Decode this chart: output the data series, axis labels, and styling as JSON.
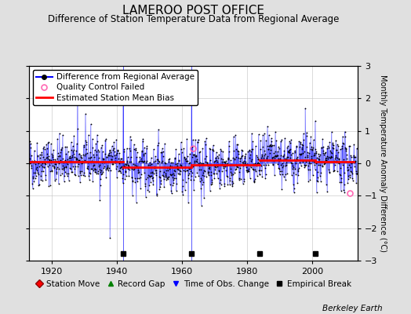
{
  "title": "LAMEROO POST OFFICE",
  "subtitle": "Difference of Station Temperature Data from Regional Average",
  "ylabel": "Monthly Temperature Anomaly Difference (°C)",
  "ylim": [
    -3,
    3
  ],
  "xlim": [
    1913,
    2014
  ],
  "seed": 42,
  "start_year": 1913,
  "end_year": 2013,
  "bias_segments": [
    {
      "start": 1913,
      "end": 1942,
      "bias": 0.05
    },
    {
      "start": 1942,
      "end": 1961,
      "bias": -0.12
    },
    {
      "start": 1961,
      "end": 1963,
      "bias": -0.12
    },
    {
      "start": 1963,
      "end": 1984,
      "bias": -0.05
    },
    {
      "start": 1984,
      "end": 2001,
      "bias": 0.1
    },
    {
      "start": 2001,
      "end": 2013,
      "bias": 0.05
    }
  ],
  "empirical_breaks": [
    1942,
    1963,
    1984,
    2001
  ],
  "time_of_obs_changes": [
    1942,
    1963
  ],
  "qc_failed": [
    {
      "year": 1963.5,
      "value": 0.45
    },
    {
      "year": 2011.5,
      "value": -0.92
    }
  ],
  "tall_spikes": [
    {
      "year": 1928,
      "value": 2.55
    },
    {
      "year": 1932,
      "value": 1.2
    },
    {
      "year": 1942,
      "value": 2.75
    },
    {
      "year": 1963,
      "value": 2.7
    },
    {
      "year": 1998,
      "value": 1.7
    },
    {
      "year": 2001,
      "value": 1.3
    }
  ],
  "deep_dips": [
    {
      "year": 1938,
      "value": -2.3
    },
    {
      "year": 1946,
      "value": -1.2
    },
    {
      "year": 1962,
      "value": -1.2
    },
    {
      "year": 1966,
      "value": -1.3
    },
    {
      "year": 2010,
      "value": -0.9
    }
  ],
  "line_color": "#0000ff",
  "dot_color": "#000000",
  "bias_color": "#ff0000",
  "qc_color": "#ff69b4",
  "background_color": "#e0e0e0",
  "plot_bg_color": "#ffffff",
  "grid_color": "#c0c0c0",
  "title_fontsize": 11,
  "subtitle_fontsize": 8.5,
  "legend_fontsize": 7.5,
  "axis_label_fontsize": 7,
  "tick_fontsize": 8,
  "watermark": "Berkeley Earth"
}
